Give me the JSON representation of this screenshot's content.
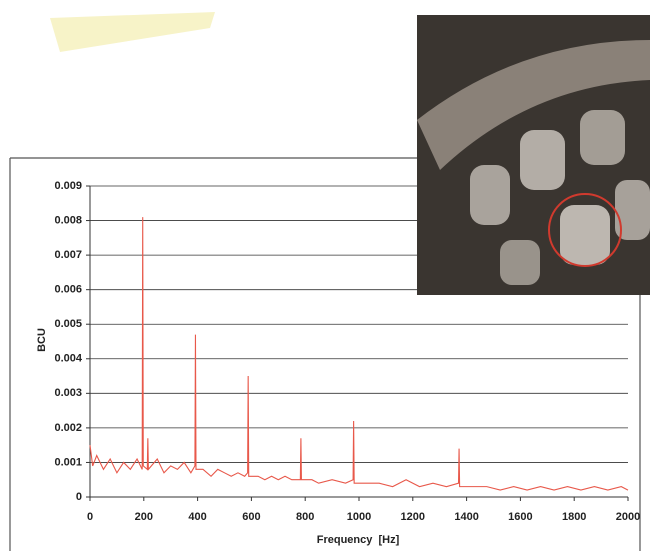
{
  "chart_data": {
    "type": "line",
    "x_label": "Frequency  [Hz]",
    "y_label": "BCU",
    "xlim": [
      0,
      2000
    ],
    "ylim": [
      0,
      0.009
    ],
    "xticks": [
      0,
      200,
      400,
      600,
      800,
      1000,
      1200,
      1400,
      1600,
      1800,
      2000
    ],
    "yticks": [
      0,
      0.001,
      0.002,
      0.003,
      0.004,
      0.005,
      0.006,
      0.007,
      0.008,
      0.009
    ],
    "grid": true,
    "series": [
      {
        "color": "#e8584a",
        "x": [
          0,
          10,
          25,
          50,
          75,
          100,
          125,
          150,
          175,
          194,
          196,
          198,
          213,
          215,
          217,
          250,
          275,
          300,
          325,
          350,
          375,
          390,
          392,
          394,
          420,
          450,
          475,
          500,
          525,
          550,
          575,
          586,
          588,
          590,
          625,
          650,
          675,
          700,
          725,
          750,
          782,
          784,
          786,
          825,
          850,
          900,
          950,
          978,
          980,
          982,
          1025,
          1075,
          1125,
          1175,
          1225,
          1275,
          1325,
          1370,
          1372,
          1374,
          1425,
          1475,
          1525,
          1575,
          1625,
          1675,
          1725,
          1775,
          1825,
          1875,
          1925,
          1975,
          2000
        ],
        "values": [
          0.0015,
          0.0009,
          0.0012,
          0.0008,
          0.0011,
          0.0007,
          0.001,
          0.0008,
          0.0011,
          0.0008,
          0.0081,
          0.0009,
          0.0008,
          0.0017,
          0.0008,
          0.0011,
          0.0007,
          0.0009,
          0.0008,
          0.001,
          0.0007,
          0.0009,
          0.0047,
          0.0008,
          0.0008,
          0.0006,
          0.0008,
          0.0007,
          0.0006,
          0.0007,
          0.0006,
          0.0007,
          0.0035,
          0.0006,
          0.0006,
          0.0005,
          0.0006,
          0.0005,
          0.0006,
          0.0005,
          0.0005,
          0.0017,
          0.0005,
          0.0005,
          0.0004,
          0.0005,
          0.0004,
          0.0005,
          0.0022,
          0.0004,
          0.0004,
          0.0004,
          0.0003,
          0.0005,
          0.0003,
          0.0004,
          0.0003,
          0.0004,
          0.0014,
          0.0003,
          0.0003,
          0.0003,
          0.0002,
          0.0003,
          0.0002,
          0.0003,
          0.0002,
          0.0003,
          0.0002,
          0.0003,
          0.0002,
          0.0003,
          0.0002
        ]
      }
    ]
  }
}
